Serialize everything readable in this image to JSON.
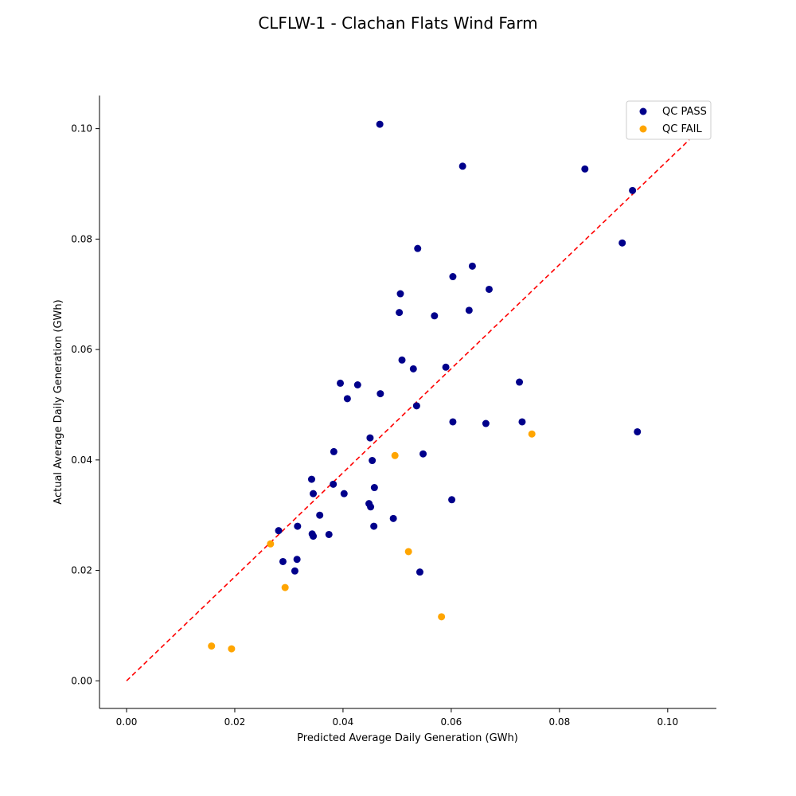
{
  "chart_data": {
    "type": "scatter",
    "title": "CLFLW-1 - Clachan Flats Wind Farm",
    "xlabel": "Predicted Average Daily Generation (GWh)",
    "ylabel": "Actual Average Daily Generation (GWh)",
    "xlim": [
      -0.005,
      0.109
    ],
    "ylim": [
      -0.005,
      0.106
    ],
    "xticks": [
      "0.00",
      "0.02",
      "0.04",
      "0.06",
      "0.08",
      "0.10"
    ],
    "yticks": [
      "0.00",
      "0.02",
      "0.04",
      "0.06",
      "0.08",
      "0.10"
    ],
    "grid": false,
    "legend_position": "top-right",
    "reference_line": {
      "style": "dashed",
      "color": "#ff0000",
      "from": [
        0,
        0
      ],
      "to": [
        0.104,
        0.098
      ]
    },
    "series": [
      {
        "name": "QC PASS",
        "color": "#00008b",
        "points": [
          [
            0.0468,
            0.1008
          ],
          [
            0.0621,
            0.0932
          ],
          [
            0.0847,
            0.0927
          ],
          [
            0.0935,
            0.0888
          ],
          [
            0.0916,
            0.0793
          ],
          [
            0.0538,
            0.0783
          ],
          [
            0.0639,
            0.0751
          ],
          [
            0.0603,
            0.0732
          ],
          [
            0.067,
            0.0709
          ],
          [
            0.0506,
            0.0701
          ],
          [
            0.0504,
            0.0667
          ],
          [
            0.0633,
            0.0671
          ],
          [
            0.0569,
            0.0661
          ],
          [
            0.0509,
            0.0581
          ],
          [
            0.053,
            0.0565
          ],
          [
            0.059,
            0.0568
          ],
          [
            0.0395,
            0.0539
          ],
          [
            0.0427,
            0.0536
          ],
          [
            0.0726,
            0.0541
          ],
          [
            0.0469,
            0.052
          ],
          [
            0.0408,
            0.0511
          ],
          [
            0.0536,
            0.0498
          ],
          [
            0.0603,
            0.0469
          ],
          [
            0.0664,
            0.0466
          ],
          [
            0.0731,
            0.0469
          ],
          [
            0.0944,
            0.0451
          ],
          [
            0.045,
            0.044
          ],
          [
            0.0383,
            0.0415
          ],
          [
            0.0548,
            0.0411
          ],
          [
            0.0454,
            0.0399
          ],
          [
            0.0342,
            0.0365
          ],
          [
            0.0382,
            0.0356
          ],
          [
            0.0458,
            0.035
          ],
          [
            0.0345,
            0.0339
          ],
          [
            0.0402,
            0.0339
          ],
          [
            0.0601,
            0.0328
          ],
          [
            0.0448,
            0.0321
          ],
          [
            0.0451,
            0.0315
          ],
          [
            0.0357,
            0.03
          ],
          [
            0.0493,
            0.0294
          ],
          [
            0.0316,
            0.028
          ],
          [
            0.0457,
            0.028
          ],
          [
            0.0281,
            0.0272
          ],
          [
            0.0343,
            0.0266
          ],
          [
            0.0345,
            0.0262
          ],
          [
            0.0374,
            0.0265
          ],
          [
            0.0289,
            0.0216
          ],
          [
            0.0315,
            0.022
          ],
          [
            0.0311,
            0.0199
          ],
          [
            0.0542,
            0.0197
          ]
        ]
      },
      {
        "name": "QC FAIL",
        "color": "#ffa500",
        "points": [
          [
            0.0749,
            0.0447
          ],
          [
            0.0496,
            0.0408
          ],
          [
            0.0266,
            0.0248
          ],
          [
            0.0521,
            0.0234
          ],
          [
            0.0293,
            0.0169
          ],
          [
            0.0582,
            0.0116
          ],
          [
            0.0157,
            0.0063
          ],
          [
            0.0194,
            0.0058
          ]
        ]
      }
    ]
  }
}
